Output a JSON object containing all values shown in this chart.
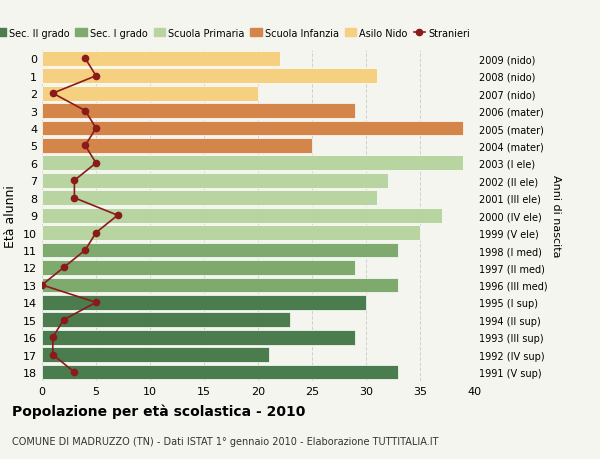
{
  "ages": [
    18,
    17,
    16,
    15,
    14,
    13,
    12,
    11,
    10,
    9,
    8,
    7,
    6,
    5,
    4,
    3,
    2,
    1,
    0
  ],
  "anni_nascita": [
    "1991 (V sup)",
    "1992 (IV sup)",
    "1993 (III sup)",
    "1994 (II sup)",
    "1995 (I sup)",
    "1996 (III med)",
    "1997 (II med)",
    "1998 (I med)",
    "1999 (V ele)",
    "2000 (IV ele)",
    "2001 (III ele)",
    "2002 (II ele)",
    "2003 (I ele)",
    "2004 (mater)",
    "2005 (mater)",
    "2006 (mater)",
    "2007 (nido)",
    "2008 (nido)",
    "2009 (nido)"
  ],
  "bar_values": [
    33,
    21,
    29,
    23,
    30,
    33,
    29,
    33,
    35,
    37,
    31,
    32,
    39,
    25,
    39,
    29,
    20,
    31,
    22
  ],
  "bar_colors": [
    "#4a7c4e",
    "#4a7c4e",
    "#4a7c4e",
    "#4a7c4e",
    "#4a7c4e",
    "#7faa6e",
    "#7faa6e",
    "#7faa6e",
    "#b8d4a0",
    "#b8d4a0",
    "#b8d4a0",
    "#b8d4a0",
    "#b8d4a0",
    "#d4854a",
    "#d4854a",
    "#d4854a",
    "#f5d080",
    "#f5d080",
    "#f5d080"
  ],
  "stranieri_values": [
    3,
    1,
    1,
    2,
    5,
    0,
    2,
    4,
    5,
    7,
    3,
    3,
    5,
    4,
    5,
    4,
    1,
    5,
    4
  ],
  "stranieri_color": "#8b1a1a",
  "ylabel": "Età alunni",
  "right_label": "Anni di nascita",
  "xlim": [
    0,
    40
  ],
  "title": "Popolazione per età scolastica - 2010",
  "subtitle": "COMUNE DI MADRUZZO (TN) - Dati ISTAT 1° gennaio 2010 - Elaborazione TUTTITALIA.IT",
  "legend_labels": [
    "Sec. II grado",
    "Sec. I grado",
    "Scuola Primaria",
    "Scuola Infanzia",
    "Asilo Nido",
    "Stranieri"
  ],
  "legend_colors": [
    "#4a7c4e",
    "#7faa6e",
    "#b8d4a0",
    "#d4854a",
    "#f5d080",
    "#8b1a1a"
  ],
  "bg_color": "#f5f5f0",
  "grid_color": "#cccccc"
}
